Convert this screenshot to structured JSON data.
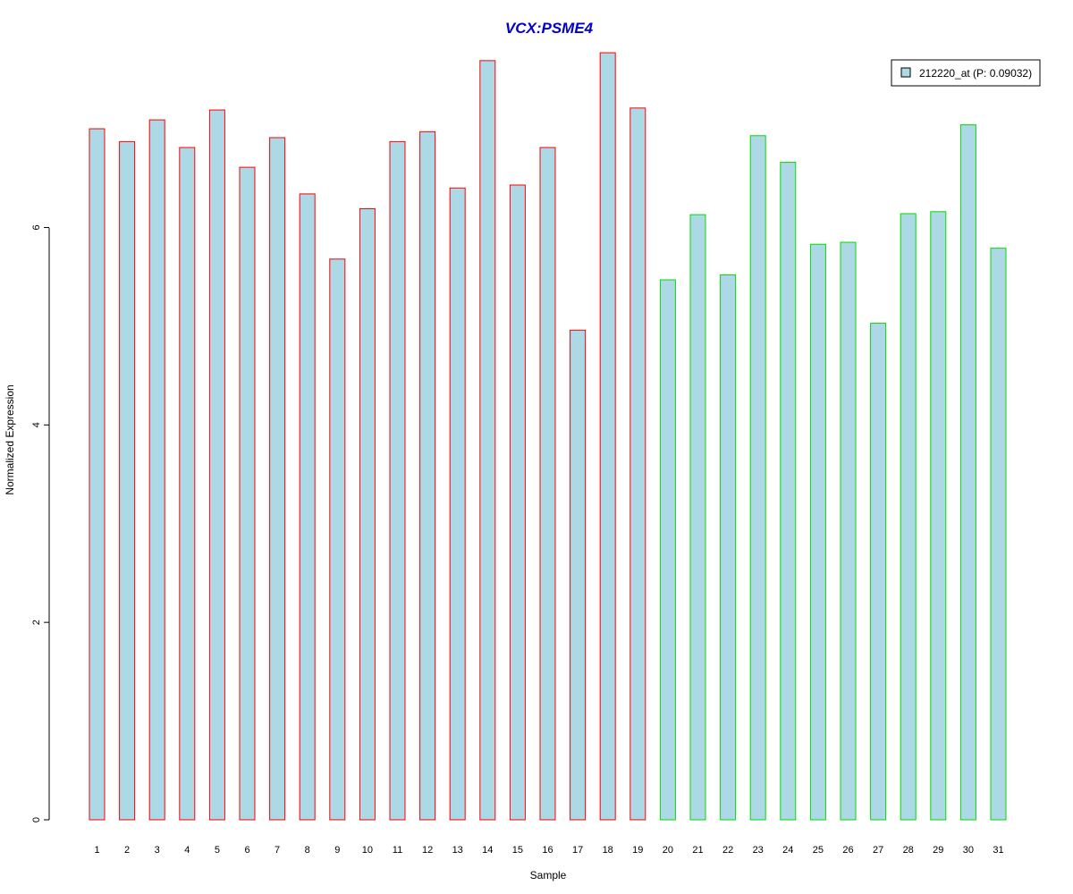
{
  "chart_data": {
    "type": "bar",
    "title": "VCX:PSME4",
    "xlabel": "Sample",
    "ylabel": "Normalized Expression",
    "categories": [
      "1",
      "2",
      "3",
      "4",
      "5",
      "6",
      "7",
      "8",
      "9",
      "10",
      "11",
      "12",
      "13",
      "14",
      "15",
      "16",
      "17",
      "18",
      "19",
      "20",
      "21",
      "22",
      "23",
      "24",
      "25",
      "26",
      "27",
      "28",
      "29",
      "30",
      "31"
    ],
    "series": [
      {
        "name": "212220_at (P: 0.09032)",
        "values": [
          7.0,
          6.87,
          7.09,
          6.81,
          7.19,
          6.61,
          6.91,
          6.34,
          5.68,
          6.19,
          6.87,
          6.97,
          6.4,
          7.69,
          6.43,
          6.81,
          4.96,
          7.77,
          7.21,
          5.47,
          6.13,
          5.52,
          6.93,
          6.66,
          5.83,
          5.85,
          5.03,
          6.14,
          6.16,
          7.04,
          5.79
        ]
      }
    ],
    "group_border_colors": [
      "#ff0000",
      "#ff0000",
      "#ff0000",
      "#ff0000",
      "#ff0000",
      "#ff0000",
      "#ff0000",
      "#ff0000",
      "#ff0000",
      "#ff0000",
      "#ff0000",
      "#ff0000",
      "#ff0000",
      "#ff0000",
      "#ff0000",
      "#ff0000",
      "#ff0000",
      "#ff0000",
      "#ff0000",
      "#00dd00",
      "#00dd00",
      "#00dd00",
      "#00dd00",
      "#00dd00",
      "#00dd00",
      "#00dd00",
      "#00dd00",
      "#00dd00",
      "#00dd00",
      "#00dd00",
      "#00dd00"
    ],
    "bar_fill": "#add8e6",
    "title_color": "#0000cc",
    "yticks": [
      0,
      2,
      4,
      6
    ],
    "ylim": [
      0,
      7.77
    ],
    "grid": false,
    "legend_position": "top-right"
  }
}
